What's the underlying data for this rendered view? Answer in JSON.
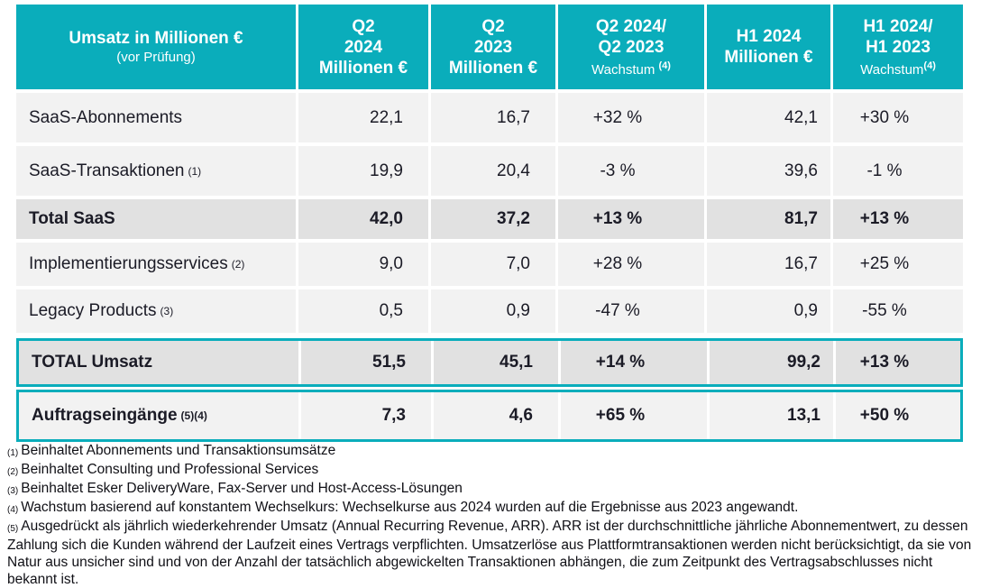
{
  "colors": {
    "accent_teal": "#0aadbb",
    "row_bg": "#f2f2f2",
    "subtotal_bg": "#e1e1e1",
    "header_text": "#ffffff",
    "body_text": "#1b1b26"
  },
  "table": {
    "header": {
      "title": "Umsatz in Millionen €",
      "subtitle": "(vor Prüfung)",
      "cols": [
        {
          "lines": [
            "Q2",
            "2024",
            "Millionen €"
          ]
        },
        {
          "lines": [
            "Q2",
            "2023",
            "Millionen €"
          ]
        },
        {
          "lines": [
            "Q2 2024/",
            "Q2 2023"
          ],
          "growth_label": "Wachstum ",
          "growth_sup": "(4)"
        },
        {
          "lines": [
            "H1 2024",
            "Millionen €"
          ]
        },
        {
          "lines": [
            "H1 2024/",
            "H1 2023"
          ],
          "growth_label": "Wachstum",
          "growth_sup": "(4)"
        }
      ]
    },
    "rows": [
      {
        "label": "SaaS-Abonnements",
        "sup": "",
        "values": [
          "22,1",
          "16,7",
          "+32 %",
          "42,1",
          "+30 %"
        ]
      },
      {
        "label": "SaaS-Transaktionen",
        "sup": "(1)",
        "values": [
          "19,9",
          "20,4",
          "-3 %",
          "39,6",
          "-1 %"
        ]
      },
      {
        "label": "Total SaaS",
        "sup": "",
        "values": [
          "42,0",
          "37,2",
          "+13 %",
          "81,7",
          "+13 %"
        ]
      },
      {
        "label": "Implementierungsservices",
        "sup": "(2)",
        "values": [
          "9,0",
          "7,0",
          "+28 %",
          "16,7",
          "+25 %"
        ]
      },
      {
        "label": "Legacy Products",
        "sup": "(3)",
        "values": [
          "0,5",
          "0,9",
          "-47 %",
          "0,9",
          "-55 %"
        ]
      },
      {
        "label": "TOTAL Umsatz",
        "sup": "",
        "values": [
          "51,5",
          "45,1",
          "+14 %",
          "99,2",
          "+13 %"
        ]
      },
      {
        "label": "Auftragseingänge",
        "sup": "(5)(4)",
        "values": [
          "7,3",
          "4,6",
          "+65 %",
          "13,1",
          "+50 %"
        ]
      }
    ]
  },
  "footnotes": [
    {
      "marker": "(1)",
      "text": "Beinhaltet Abonnements und Transaktionsumsätze"
    },
    {
      "marker": "(2)",
      "text": "Beinhaltet Consulting und Professional Services"
    },
    {
      "marker": "(3)",
      "text": "Beinhaltet Esker DeliveryWare, Fax-Server und Host-Access-Lösungen"
    },
    {
      "marker": "(4)",
      "text": "Wachstum basierend auf konstantem Wechselkurs: Wechselkurse aus 2024 wurden auf die Ergebnisse aus 2023 angewandt."
    },
    {
      "marker": "(5)",
      "text": "Ausgedrückt als jährlich wiederkehrender Umsatz (Annual Recurring Revenue, ARR). ARR ist der durchschnittliche jährliche Abonnementwert, zu dessen Zahlung sich die Kunden während der Laufzeit eines Vertrags verpflichten. Umsatzerlöse aus Plattformtransaktionen werden nicht berücksichtigt, da sie von Natur aus unsicher sind und von der Anzahl der tatsächlich abgewickelten Transaktionen abhängen, die zum Zeitpunkt des Vertragsabschlusses nicht bekannt ist."
    }
  ]
}
